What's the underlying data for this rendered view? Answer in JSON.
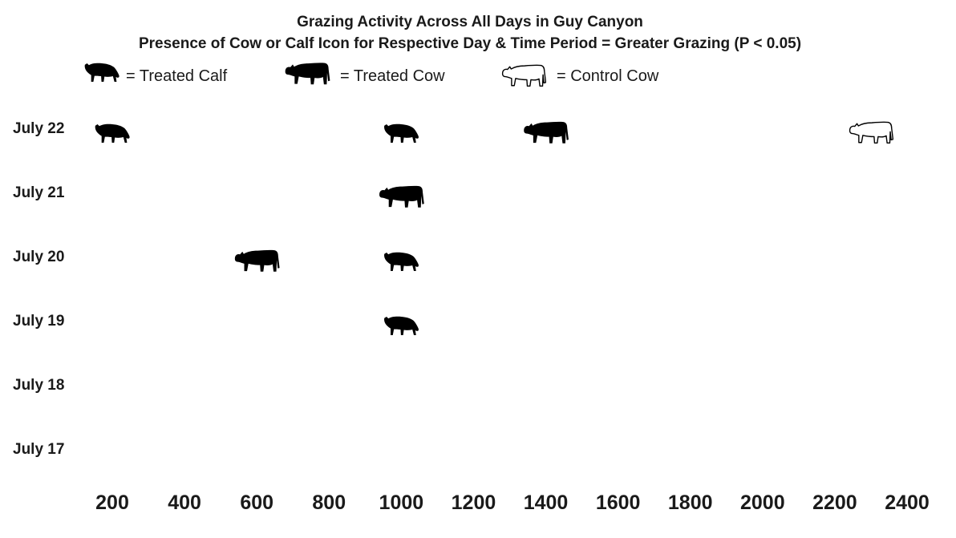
{
  "chart_data": {
    "type": "scatter",
    "title": "Grazing Activity Across All Days in Guy Canyon",
    "subtitle": "Presence of Cow or Calf Icon for Respective Day & Time Period = Greater Grazing (P < 0.05)",
    "x_ticks": [
      200,
      400,
      600,
      800,
      1000,
      1200,
      1400,
      1600,
      1800,
      2000,
      2200,
      2400
    ],
    "xlim": [
      200,
      2400
    ],
    "categories": [
      "July 22",
      "July 21",
      "July 20",
      "July 19",
      "July 18",
      "July 17"
    ],
    "grid": false,
    "legend_position": "top",
    "legend": [
      {
        "key": "treated_calf",
        "label": "= Treated Calf",
        "icon": "calf-silhouette-icon",
        "color": "#000000"
      },
      {
        "key": "treated_cow",
        "label": "= Treated Cow",
        "icon": "cow-silhouette-icon",
        "color": "#000000"
      },
      {
        "key": "control_cow",
        "label": "= Control Cow",
        "icon": "cow-outline-icon",
        "color": "#ffffff"
      }
    ],
    "series": [
      {
        "key": "treated_calf",
        "points": [
          {
            "day": "July 22",
            "x": 200
          },
          {
            "day": "July 22",
            "x": 1000
          },
          {
            "day": "July 20",
            "x": 1000
          },
          {
            "day": "July 19",
            "x": 1000
          }
        ]
      },
      {
        "key": "treated_cow",
        "points": [
          {
            "day": "July 22",
            "x": 1400
          },
          {
            "day": "July 21",
            "x": 1000
          },
          {
            "day": "July 20",
            "x": 600
          }
        ]
      },
      {
        "key": "control_cow",
        "points": [
          {
            "day": "July 22",
            "x": 2300
          }
        ]
      }
    ]
  }
}
